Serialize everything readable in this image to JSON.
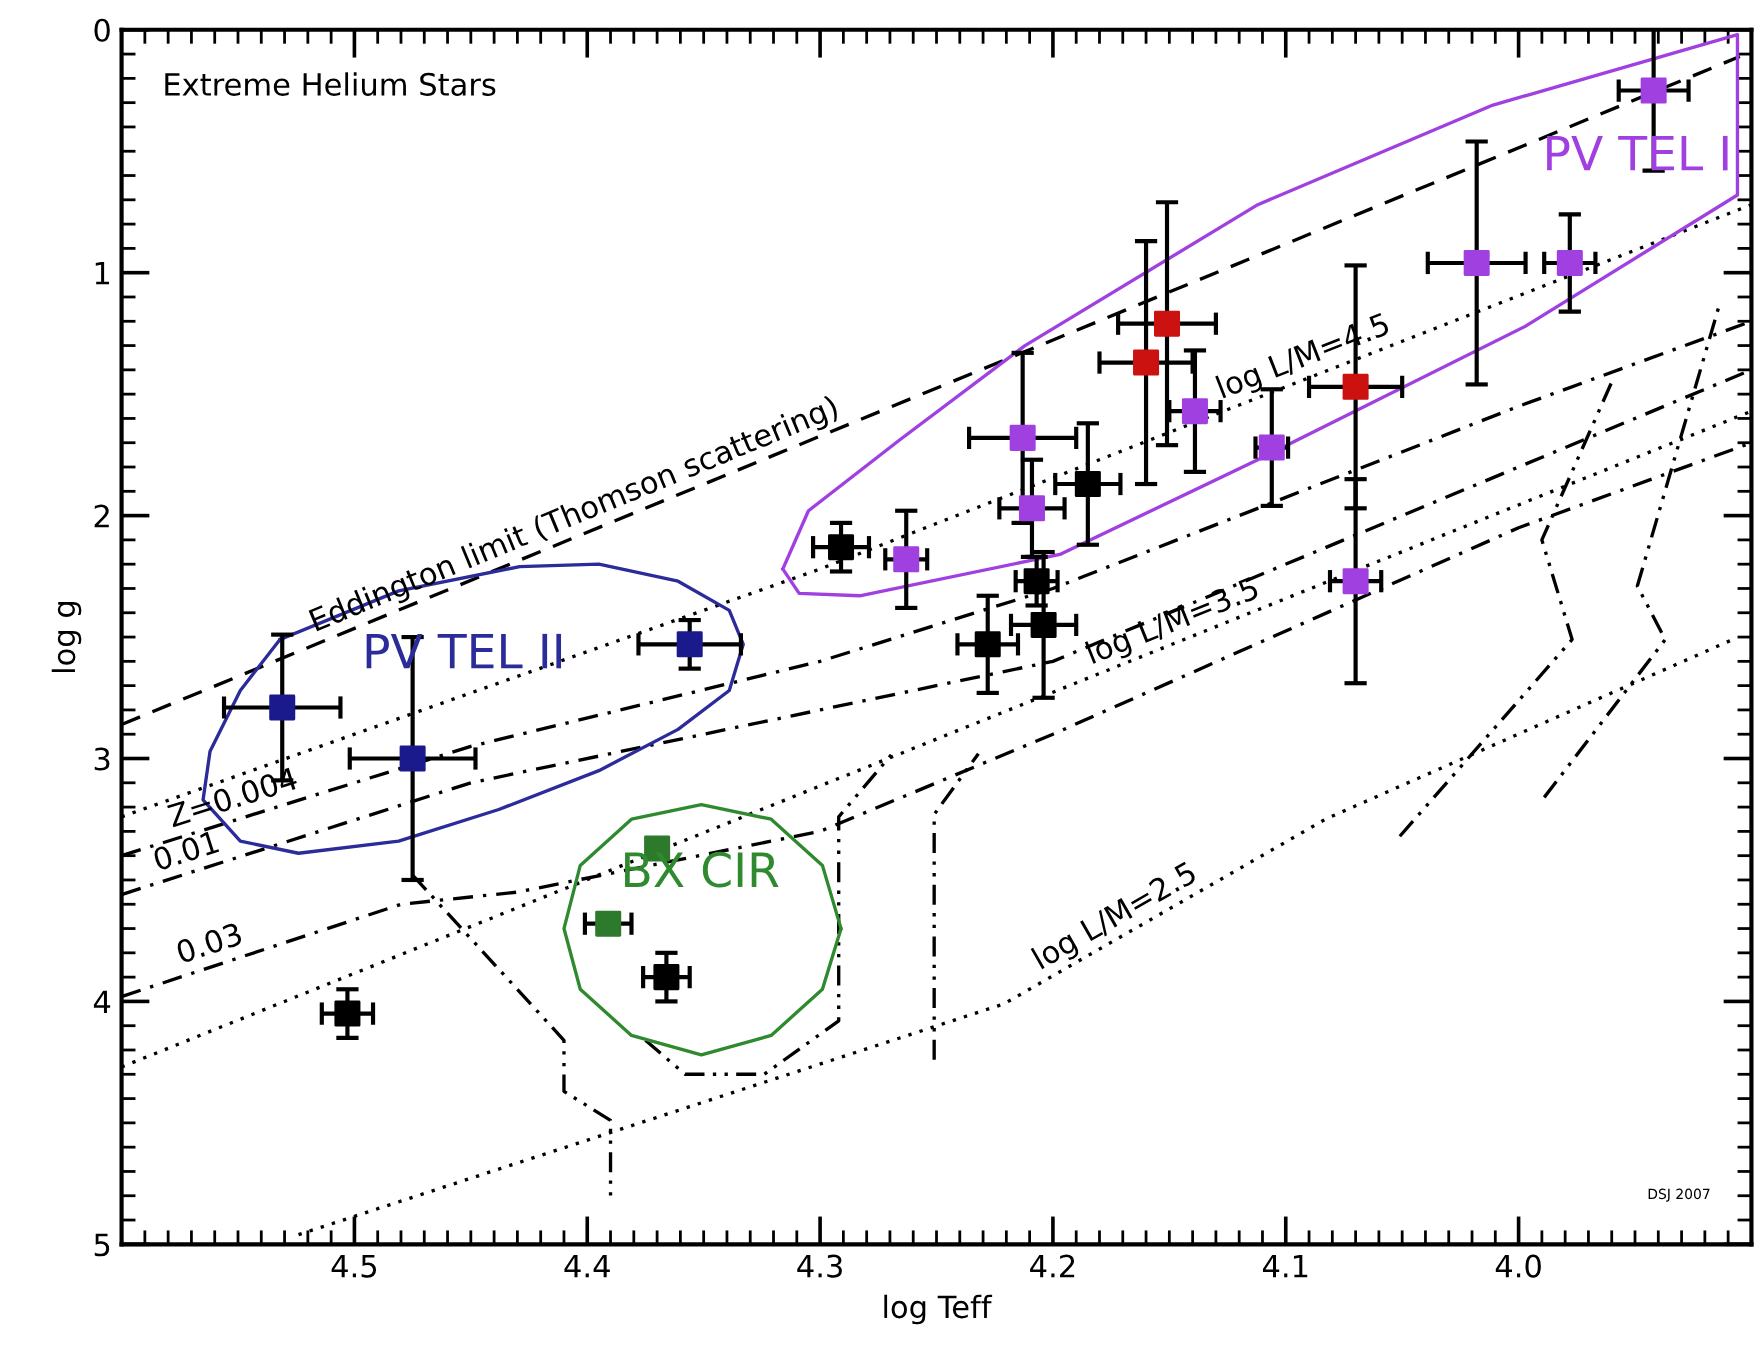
{
  "chart_data": {
    "type": "scatter",
    "xlabel": "log Teff",
    "ylabel": "log g",
    "xlim": [
      4.6,
      3.9
    ],
    "ylim": [
      5,
      0
    ],
    "xticks": [
      4.5,
      4.4,
      4.3,
      4.2,
      4.1,
      {
        "value": 4.0,
        "label": "4.0"
      }
    ],
    "yticks": [
      0,
      1,
      2,
      3,
      4,
      5
    ],
    "grid": false,
    "annotations": [
      "Extreme Helium Stars",
      "DSJ 2007",
      "PV TEL II",
      "BX CIR",
      "PV TEL I",
      {
        "text": "Eddington limit (Thomson scattering)",
        "x": 4.403,
        "y": 2.08
      },
      {
        "text": "log L/M=4.5",
        "x": 4.09,
        "y": 1.43
      },
      {
        "text": "log L/M=3.5",
        "x": 4.146,
        "y": 2.52
      },
      {
        "text": "log L/M=2.5",
        "x": 4.17,
        "y": 3.73
      },
      {
        "text": "Z=0.004",
        "x": 4.55,
        "y": 3.25
      },
      {
        "text": "0.01",
        "x": 4.57,
        "y": 3.47
      },
      {
        "text": "0.03",
        "x": 4.56,
        "y": 3.85
      }
    ],
    "series": [
      {
        "type": "line",
        "line_style": "dashed",
        "color": "#000000",
        "x": [
          4.6,
          3.905
        ],
        "values": [
          2.86,
          0.11
        ]
      },
      {
        "type": "line",
        "line_style": "dotted",
        "color": "#000000",
        "x": [
          4.6,
          4.3,
          3.9
        ],
        "values": [
          3.24,
          2.22,
          0.72
        ]
      },
      {
        "type": "line",
        "line_style": "dotted",
        "color": "#000000",
        "x": [
          4.6,
          3.9
        ],
        "values": [
          4.27,
          1.57
        ]
      },
      {
        "type": "line",
        "line_style": "dotted",
        "color": "#000000",
        "x": [
          4.524,
          4.221,
          4.083,
          3.908
        ],
        "values": [
          4.96,
          4.01,
          3.25,
          2.51
        ]
      },
      {
        "type": "line",
        "line_style": "dashdot",
        "color": "#000000",
        "x": [
          4.6,
          4.45,
          4.3,
          4.2,
          4.0,
          3.9
        ],
        "values": [
          3.4,
          2.95,
          2.6,
          2.3,
          1.55,
          1.2
        ]
      },
      {
        "type": "line",
        "line_style": "dashdot",
        "color": "#000000",
        "x": [
          4.6,
          4.45,
          4.35,
          4.2,
          4.0,
          3.9
        ],
        "values": [
          3.56,
          3.1,
          2.9,
          2.6,
          1.8,
          1.4
        ]
      },
      {
        "type": "line",
        "line_style": "dashdot",
        "color": "#000000",
        "x": [
          4.6,
          4.48,
          4.43,
          4.3,
          4.2,
          4.0,
          3.9
        ],
        "values": [
          3.98,
          3.6,
          3.55,
          3.3,
          2.9,
          2.05,
          1.7
        ]
      },
      {
        "type": "line",
        "line_style": "dashdotdot",
        "color": "#000000",
        "x": [
          4.475,
          4.41,
          4.41,
          4.39,
          4.39
        ],
        "values": [
          3.48,
          4.16,
          4.37,
          4.49,
          4.8
        ]
      },
      {
        "type": "line",
        "line_style": "dashdotdot",
        "color": "#000000",
        "x": [
          4.375,
          4.358,
          4.324,
          4.292,
          4.292,
          4.269
        ],
        "values": [
          4.16,
          4.3,
          4.3,
          4.08,
          3.24,
          2.98
        ]
      },
      {
        "type": "line",
        "line_style": "dashdotdot",
        "color": "#000000",
        "x": [
          4.251,
          4.251,
          4.232
        ],
        "values": [
          4.24,
          3.23,
          2.98
        ]
      },
      {
        "type": "line",
        "line_style": "dashdotdot",
        "color": "#000000",
        "x": [
          4.051,
          3.977,
          3.99,
          3.96
        ],
        "values": [
          3.32,
          2.51,
          2.1,
          1.45
        ]
      },
      {
        "type": "line",
        "line_style": "dashdotdot",
        "color": "#000000",
        "x": [
          3.989,
          3.937,
          3.949,
          3.914
        ],
        "values": [
          3.16,
          2.51,
          2.29,
          1.14
        ]
      },
      {
        "marker": "square",
        "color": "#1a1a8c",
        "x": [
          4.531,
          4.475,
          4.356
        ],
        "values": [
          2.79,
          3.0,
          2.53
        ],
        "xerrors": [
          0.025,
          0.027,
          0.022
        ],
        "errors": [
          0.3,
          0.5,
          0.1
        ]
      },
      {
        "marker": "square",
        "color": "#2d7a2d",
        "x": [
          4.37,
          4.391
        ],
        "values": [
          3.37,
          3.68
        ],
        "xerrors": [
          null,
          0.01
        ],
        "errors": [
          null,
          null
        ]
      },
      {
        "marker": "square",
        "color": "#000000",
        "x": [
          4.366,
          4.503,
          4.291,
          4.185,
          4.207,
          4.204,
          4.228
        ],
        "values": [
          3.9,
          4.05,
          2.13,
          1.87,
          2.27,
          2.45,
          2.53
        ],
        "xerrors": [
          0.01,
          0.011,
          0.012,
          0.014,
          0.009,
          0.014,
          0.013
        ],
        "errors": [
          0.1,
          0.1,
          0.1,
          0.25,
          0.1,
          0.3,
          0.2
        ]
      },
      {
        "marker": "square",
        "color": "#cc1111",
        "x": [
          4.151,
          4.16,
          4.07
        ],
        "values": [
          1.21,
          1.37,
          1.47
        ],
        "xerrors": [
          0.021,
          0.02,
          0.02
        ],
        "errors": [
          0.5,
          0.5,
          0.5
        ]
      },
      {
        "marker": "square",
        "color": "#a040e0",
        "x": [
          4.263,
          4.213,
          4.209,
          4.139,
          4.106,
          4.07,
          4.018,
          3.978,
          3.942
        ],
        "values": [
          2.18,
          1.68,
          1.97,
          1.57,
          1.72,
          2.27,
          0.96,
          0.96,
          0.25
        ],
        "xerrors": [
          0.009,
          0.023,
          0.014,
          0.011,
          0.007,
          0.011,
          0.021,
          0.011,
          0.015
        ],
        "errors": [
          0.2,
          0.35,
          0.2,
          0.25,
          0.24,
          0.42,
          0.5,
          0.2,
          0.33
        ]
      }
    ]
  }
}
